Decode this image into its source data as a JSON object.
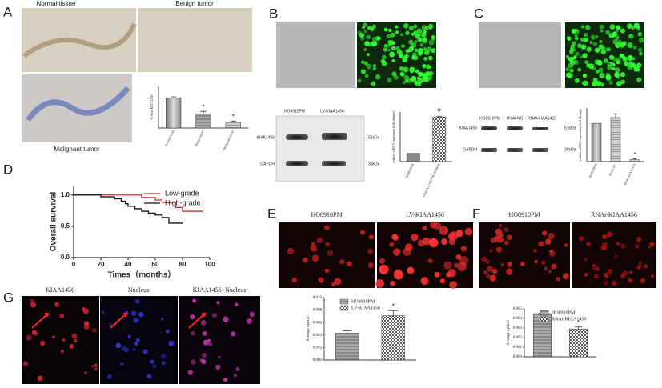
{
  "panels": [
    "A",
    "B",
    "C",
    "D",
    "E",
    "F",
    "G"
  ],
  "images": {
    "a": [
      "Normal tissue",
      "Benign tumor",
      "Malignant tumor"
    ],
    "e": [
      "HO8910PM",
      "LV-KIAA1456"
    ],
    "f": [
      "HO8910PM",
      "RNAi-KIAA1456"
    ],
    "g": [
      "KIAA1456",
      "Nucleus",
      "KIAA1456+Nucleus"
    ]
  },
  "blots": {
    "b": {
      "lanes": [
        "HO8910PM",
        "LV-KIAA1456"
      ],
      "proteins": [
        "KIAA1456",
        "GAPDH"
      ],
      "sizes": [
        "51kDa",
        "36kDa"
      ]
    },
    "c": {
      "lanes": [
        "HO8910PM",
        "RNAi-NC",
        "RNAi-KIAA1456"
      ],
      "proteins": [
        "KIAA1456",
        "GAPDH"
      ],
      "sizes": [
        "51kDa",
        "36kDa"
      ]
    }
  },
  "chart_data": [
    {
      "type": "bar",
      "ylabel": "% Area KIAA1456",
      "categories": [
        "Normal tissue",
        "Benign tumor",
        "Malignant tumor"
      ],
      "values": [
        36,
        17,
        7
      ],
      "errors": [
        1.5,
        3,
        1.5
      ],
      "ylim": [
        0,
        50
      ],
      "annotations": [
        "*",
        "*"
      ]
    },
    {
      "type": "bar",
      "ylabel": "relative mRNA expression (fold change)",
      "categories": [
        "HO8910PM",
        "LV-KIAA1456+HO8910PM"
      ],
      "values": [
        1,
        5.4
      ],
      "errors": [
        0,
        0.1
      ],
      "ylim": [
        0,
        6
      ],
      "annotations": [
        "*"
      ]
    },
    {
      "type": "bar",
      "ylabel": "relative mRNA expression (fold change)",
      "categories": [
        "HO8910PM",
        "RNAi-NC",
        "RNAi-KIAA1456"
      ],
      "values": [
        1,
        1.15,
        0.05
      ],
      "errors": [
        0,
        0.1,
        0.02
      ],
      "ylim": [
        0,
        1.4
      ],
      "annotations": [
        "*"
      ]
    },
    {
      "type": "line",
      "ylabel": "Overall survival",
      "xlabel": "Times（months）",
      "xlim": [
        0,
        100
      ],
      "ylim": [
        0,
        1.15
      ],
      "xticks": [
        0,
        20,
        40,
        60,
        80,
        100
      ],
      "yticks": [
        {
          "value": 0,
          "label": "0.0"
        },
        {
          "value": 0.5,
          "label": "0.5"
        },
        {
          "value": 1,
          "label": "1.0"
        }
      ],
      "series": [
        {
          "name": "Low-grade",
          "color": "#d62728",
          "x": [
            0,
            40,
            50,
            55,
            60,
            65,
            70,
            75,
            80,
            95
          ],
          "values": [
            1,
            1,
            0.96,
            0.96,
            0.92,
            0.88,
            0.88,
            0.8,
            0.74,
            0.74
          ]
        },
        {
          "name": "High-grade",
          "color": "#111111",
          "x": [
            0,
            20,
            30,
            35,
            38,
            40,
            45,
            50,
            55,
            60,
            65,
            70,
            80
          ],
          "values": [
            1,
            0.97,
            0.94,
            0.9,
            0.86,
            0.82,
            0.78,
            0.74,
            0.71,
            0.68,
            0.64,
            0.55,
            0.55
          ]
        }
      ]
    },
    {
      "type": "bar",
      "ylabel": "Average optical",
      "categories": [
        null
      ],
      "series": [
        {
          "name": "HO8910PM",
          "values": [
            0.0043
          ],
          "errors": [
            0.0004
          ]
        },
        {
          "name": "LV-KIAA1456",
          "values": [
            0.0071
          ],
          "errors": [
            0.0008
          ]
        }
      ],
      "ylim": [
        0,
        0.01
      ],
      "yticks": [
        {
          "value": 0,
          "label": "0.000"
        },
        {
          "value": 0.002,
          "label": "0.002"
        },
        {
          "value": 0.004,
          "label": "0.004"
        },
        {
          "value": 0.006,
          "label": "0.006"
        },
        {
          "value": 0.008,
          "label": "0.008"
        },
        {
          "value": 0.01,
          "label": "0.010"
        }
      ],
      "annotations": [
        "*"
      ]
    },
    {
      "type": "bar",
      "ylabel": "Average optical",
      "categories": [
        null
      ],
      "series": [
        {
          "name": "HO8910PM",
          "values": [
            0.0045
          ],
          "errors": [
            5e-05
          ]
        },
        {
          "name": "RNAi-KIAA1456",
          "values": [
            0.0029
          ],
          "errors": [
            0.0002
          ]
        }
      ],
      "ylim": [
        0,
        0.005
      ],
      "yticks": [
        {
          "value": 0,
          "label": "0.000"
        },
        {
          "value": 0.001,
          "label": "0.001"
        },
        {
          "value": 0.002,
          "label": "0.002"
        },
        {
          "value": 0.003,
          "label": "0.003"
        },
        {
          "value": 0.004,
          "label": "0.004"
        },
        {
          "value": 0.005,
          "label": "0.005"
        }
      ],
      "annotations": [
        "*"
      ]
    }
  ]
}
